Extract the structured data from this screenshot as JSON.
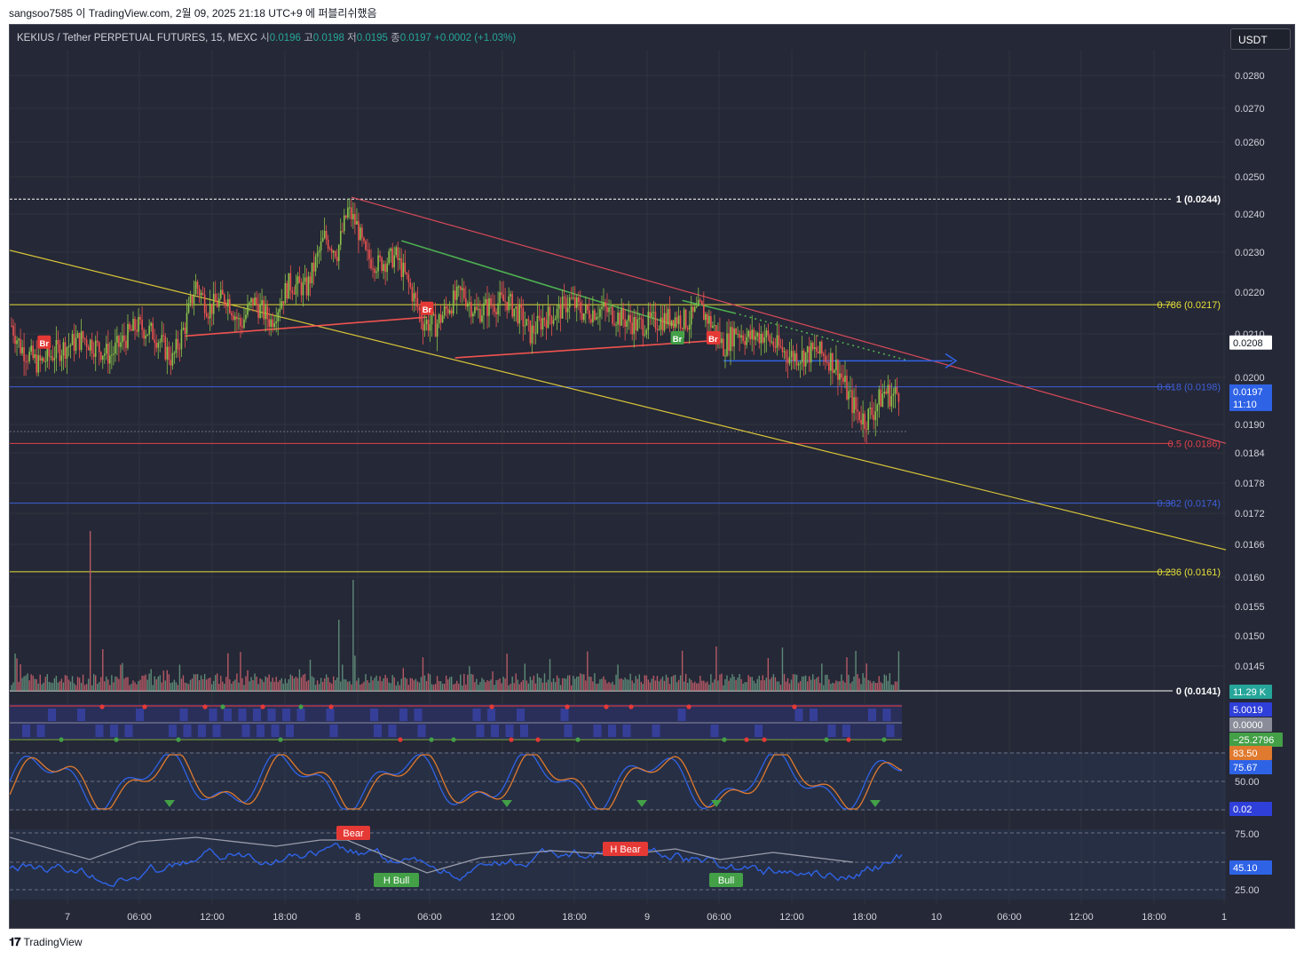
{
  "header": {
    "publish_line": "sangsoo7585 이 TradingView.com, 2월 09, 2025 21:18 UTC+9 에 퍼블리쉬했음"
  },
  "legend": {
    "symbol": "KEKIUS / Tether PERPETUAL FUTURES, 15, MEXC",
    "open_label": "시",
    "open_value": "0.0196",
    "high_label": "고",
    "high_value": "0.0198",
    "low_label": "저",
    "low_value": "0.0195",
    "close_label": "종",
    "close_value": "0.0197",
    "change": "+0.0002 (+1.03%)"
  },
  "currency": "USDT",
  "footer": {
    "brand": "TradingView"
  },
  "colors": {
    "background": "#252836",
    "up": "#8bc34a",
    "down": "#ef5350",
    "fib_yellow": "#e7e03a",
    "fib_blue": "#3d5fd9",
    "fib_red": "#e0414a",
    "trend_red": "#d84a5a",
    "trend_green": "#4caf50",
    "trend_yellow": "#d8c53a",
    "arrow_blue": "#2f63e6",
    "volume": "#b55a66"
  },
  "chart_data": {
    "type": "candlestick",
    "symbol": "KEKIUS / Tether PERPETUAL FUTURES",
    "timeframe": "15",
    "exchange": "MEXC",
    "ylim": [
      0.0138,
      0.0286
    ],
    "y_axis_ticks": [
      "0.0280",
      "0.0270",
      "0.0260",
      "0.0250",
      "0.0240",
      "0.0230",
      "0.0220",
      "0.0210",
      "0.0200",
      "0.0190",
      "0.0184",
      "0.0178",
      "0.0172",
      "0.0166",
      "0.0160",
      "0.0155",
      "0.0150",
      "0.0145"
    ],
    "x_axis_ticks": [
      "7",
      "06:00",
      "12:00",
      "18:00",
      "8",
      "06:00",
      "12:00",
      "18:00",
      "9",
      "06:00",
      "12:00",
      "18:00",
      "10",
      "06:00",
      "12:00",
      "18:00",
      "1"
    ],
    "price_path": [
      [
        0,
        0.0212
      ],
      [
        5,
        0.0207
      ],
      [
        15,
        0.0203
      ],
      [
        25,
        0.0206
      ],
      [
        40,
        0.0209
      ],
      [
        55,
        0.0205
      ],
      [
        70,
        0.0212
      ],
      [
        80,
        0.021
      ],
      [
        90,
        0.0204
      ],
      [
        97,
        0.0212
      ],
      [
        103,
        0.0222
      ],
      [
        110,
        0.0216
      ],
      [
        120,
        0.0219
      ],
      [
        128,
        0.0212
      ],
      [
        135,
        0.0218
      ],
      [
        145,
        0.0213
      ],
      [
        155,
        0.0222
      ],
      [
        165,
        0.0221
      ],
      [
        175,
        0.0234
      ],
      [
        182,
        0.023
      ],
      [
        188,
        0.0241
      ],
      [
        193,
        0.0237
      ],
      [
        198,
        0.0229
      ],
      [
        205,
        0.0227
      ],
      [
        215,
        0.0229
      ],
      [
        222,
        0.0222
      ],
      [
        230,
        0.0213
      ],
      [
        237,
        0.0212
      ],
      [
        245,
        0.0217
      ],
      [
        252,
        0.022
      ],
      [
        260,
        0.0215
      ],
      [
        268,
        0.0217
      ],
      [
        277,
        0.0218
      ],
      [
        285,
        0.0214
      ],
      [
        290,
        0.021
      ],
      [
        298,
        0.0214
      ],
      [
        305,
        0.0215
      ],
      [
        312,
        0.0218
      ],
      [
        320,
        0.0215
      ],
      [
        330,
        0.0216
      ],
      [
        340,
        0.0214
      ],
      [
        350,
        0.0212
      ],
      [
        360,
        0.0213
      ],
      [
        370,
        0.0214
      ],
      [
        378,
        0.0213
      ],
      [
        385,
        0.0216
      ],
      [
        392,
        0.0212
      ],
      [
        398,
        0.0207
      ],
      [
        405,
        0.0211
      ],
      [
        412,
        0.0209
      ],
      [
        420,
        0.021
      ],
      [
        428,
        0.0207
      ],
      [
        435,
        0.0205
      ],
      [
        442,
        0.0205
      ],
      [
        450,
        0.0206
      ],
      [
        458,
        0.0204
      ],
      [
        462,
        0.0202
      ],
      [
        468,
        0.0196
      ],
      [
        472,
        0.0193
      ],
      [
        477,
        0.0191
      ],
      [
        482,
        0.0193
      ],
      [
        488,
        0.0197
      ],
      [
        493,
        0.0196
      ],
      [
        496,
        0.0197
      ]
    ],
    "overlays": {
      "fib_levels": [
        {
          "label": "1 (0.0244)",
          "value": 0.0244
        },
        {
          "label": "0.786 (0.0217)",
          "value": 0.0217
        },
        {
          "label": "0.618 (0.0198)",
          "value": 0.0198
        },
        {
          "label": "0.5 (0.0186)",
          "value": 0.0186
        },
        {
          "label": "0.382 (0.0174)",
          "value": 0.0174
        },
        {
          "label": "0.236 (0.0161)",
          "value": 0.0161
        },
        {
          "label": "0 (0.0141)",
          "value": 0.0141
        }
      ],
      "trend_badges": [
        {
          "label": "Br",
          "kind": "red",
          "x": 18,
          "y": 0.0208
        },
        {
          "label": "Br",
          "kind": "red",
          "x": 232,
          "y": 0.0216
        },
        {
          "label": "Br",
          "kind": "green",
          "x": 372,
          "y": 0.0209
        },
        {
          "label": "Br",
          "kind": "red",
          "x": 392,
          "y": 0.0209
        }
      ]
    },
    "price_labels": {
      "marker": "0.0208",
      "current": "0.0197",
      "countdown": "11:10"
    },
    "indicators": {
      "volume": {
        "last_label": "11.29 K"
      },
      "oscillator": {
        "values": [
          "5.0019",
          "0.0000",
          "−25.2796"
        ]
      },
      "stoch_rsi": {
        "value1": "83.50",
        "value2": "75.67",
        "tick_label": "50.00",
        "value3": "0.02"
      },
      "rsi": {
        "ticks": [
          "75.00",
          "25.00"
        ],
        "value": "45.10",
        "divergence_labels": [
          {
            "label": "Bear",
            "kind": "bear",
            "x": 190
          },
          {
            "label": "H Bull",
            "kind": "bull",
            "x": 210
          },
          {
            "label": "H Bear",
            "kind": "bear",
            "x": 340
          },
          {
            "label": "Bull",
            "kind": "bull",
            "x": 405
          }
        ]
      }
    }
  }
}
